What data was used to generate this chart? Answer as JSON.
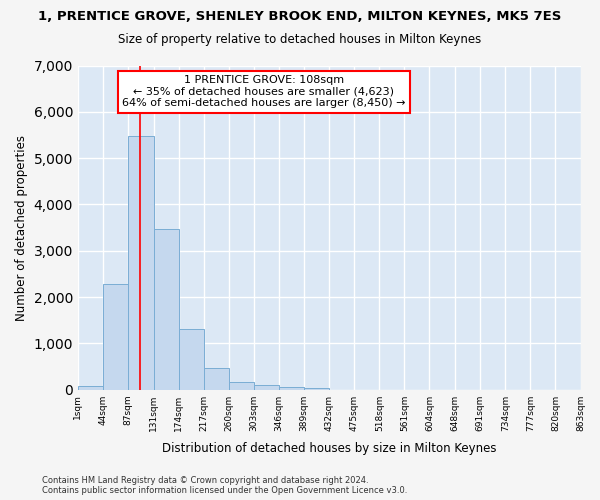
{
  "title": "1, PRENTICE GROVE, SHENLEY BROOK END, MILTON KEYNES, MK5 7ES",
  "subtitle": "Size of property relative to detached houses in Milton Keynes",
  "xlabel": "Distribution of detached houses by size in Milton Keynes",
  "ylabel": "Number of detached properties",
  "bar_color": "#c5d8ee",
  "bar_edge_color": "#7aadd4",
  "vline_x": 108,
  "vline_color": "red",
  "annotation_text": "1 PRENTICE GROVE: 108sqm\n← 35% of detached houses are smaller (4,623)\n64% of semi-detached houses are larger (8,450) →",
  "annotation_box_color": "red",
  "annotation_text_color": "black",
  "bin_edges": [
    1,
    44,
    87,
    131,
    174,
    217,
    260,
    303,
    346,
    389,
    432,
    475,
    518,
    561,
    604,
    648,
    691,
    734,
    777,
    820,
    863
  ],
  "bar_heights": [
    75,
    2290,
    5480,
    3460,
    1310,
    475,
    165,
    95,
    55,
    30,
    0,
    0,
    0,
    0,
    0,
    0,
    0,
    0,
    0,
    0
  ],
  "ylim": [
    0,
    7000
  ],
  "yticks": [
    0,
    1000,
    2000,
    3000,
    4000,
    5000,
    6000,
    7000
  ],
  "footer": "Contains HM Land Registry data © Crown copyright and database right 2024.\nContains public sector information licensed under the Open Government Licence v3.0.",
  "plot_bg_color": "#dce8f5",
  "fig_bg_color": "#f5f5f5",
  "grid_color": "#ffffff"
}
